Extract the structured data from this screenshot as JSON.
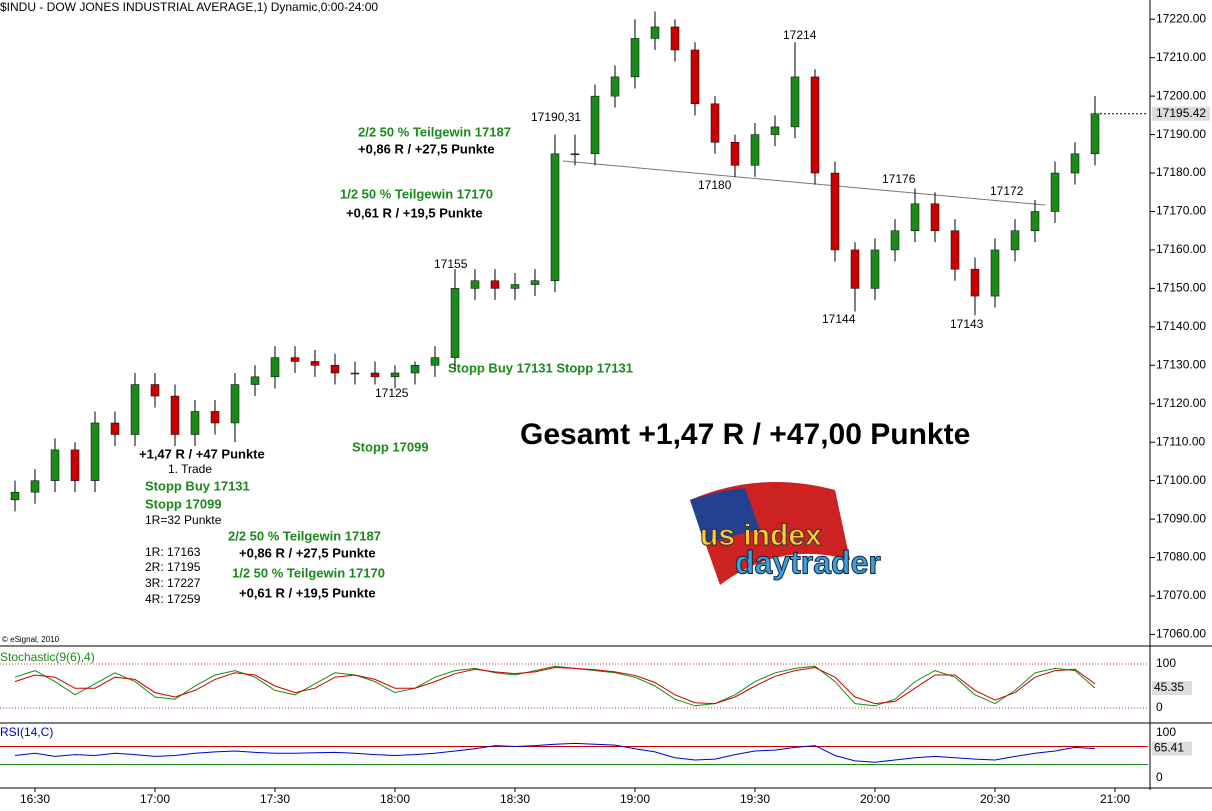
{
  "chart_data": {
    "type": "candlestick",
    "title": "$INDU - DOW JONES INDUSTRIAL AVERAGE,1) Dynamic,0:00-24:00",
    "credit": "© eSignal, 2010",
    "up_color": "#1a8a1a",
    "down_color": "#cc0000",
    "x": [
      "16:25",
      "16:30",
      "16:35",
      "16:40",
      "16:45",
      "16:50",
      "16:55",
      "17:00",
      "17:05",
      "17:10",
      "17:15",
      "17:20",
      "17:25",
      "17:30",
      "17:35",
      "17:40",
      "17:45",
      "17:50",
      "17:55",
      "18:00",
      "18:05",
      "18:10",
      "18:15",
      "18:20",
      "18:25",
      "18:30",
      "18:35",
      "18:40",
      "18:45",
      "18:50",
      "18:55",
      "19:00",
      "19:05",
      "19:10",
      "19:15",
      "19:20",
      "19:25",
      "19:30",
      "19:35",
      "19:40",
      "19:45",
      "19:50",
      "19:55",
      "20:00",
      "20:05",
      "20:10",
      "20:15",
      "20:20",
      "20:25",
      "20:30",
      "20:35",
      "20:40",
      "20:45",
      "20:50",
      "20:55"
    ],
    "open": [
      17095,
      17097,
      17100,
      17108,
      17100,
      17115,
      17112,
      17125,
      17122,
      17112,
      17118,
      17115,
      17125,
      17127,
      17132,
      17131,
      17130,
      17128,
      17128,
      17127,
      17128,
      17130,
      17132,
      17150,
      17152,
      17150,
      17151,
      17152,
      17185,
      17185,
      17200,
      17205,
      17215,
      17218,
      17212,
      17198,
      17188,
      17182,
      17190,
      17192,
      17205,
      17180,
      17160,
      17150,
      17160,
      17165,
      17172,
      17165,
      17155,
      17148,
      17160,
      17165,
      17170,
      17180,
      17185
    ],
    "high": [
      17100,
      17103,
      17111,
      17110,
      17118,
      17118,
      17128,
      17128,
      17125,
      17121,
      17121,
      17128,
      17130,
      17135,
      17135,
      17134,
      17133,
      17131,
      17131,
      17130,
      17131,
      17135,
      17155,
      17155,
      17155,
      17154,
      17155,
      17190,
      17190,
      17203,
      17208,
      17220,
      17222,
      17220,
      17214,
      17200,
      17190,
      17193,
      17195,
      17214,
      17207,
      17183,
      17162,
      17163,
      17168,
      17176,
      17175,
      17168,
      17158,
      17163,
      17168,
      17173,
      17183,
      17188,
      17200
    ],
    "low": [
      17092,
      17094,
      17097,
      17097,
      17097,
      17109,
      17109,
      17119,
      17109,
      17109,
      17112,
      17110,
      17122,
      17124,
      17128,
      17127,
      17125,
      17125,
      17125,
      17124,
      17125,
      17127,
      17129,
      17147,
      17147,
      17147,
      17148,
      17149,
      17182,
      17182,
      17197,
      17202,
      17212,
      17209,
      17195,
      17185,
      17179,
      17179,
      17187,
      17189,
      17177,
      17157,
      17144,
      17147,
      17157,
      17162,
      17162,
      17152,
      17143,
      17145,
      17157,
      17162,
      17167,
      17177,
      17182
    ],
    "close": [
      17097,
      17100,
      17108,
      17100,
      17115,
      17112,
      17125,
      17122,
      17112,
      17118,
      17115,
      17125,
      17127,
      17132,
      17131,
      17130,
      17128,
      17128,
      17127,
      17128,
      17130,
      17132,
      17150,
      17152,
      17150,
      17151,
      17152,
      17185,
      17185,
      17200,
      17205,
      17215,
      17218,
      17212,
      17198,
      17188,
      17182,
      17190,
      17192,
      17205,
      17180,
      17160,
      17150,
      17160,
      17165,
      17172,
      17165,
      17155,
      17148,
      17160,
      17165,
      17170,
      17180,
      17185,
      17195.42
    ],
    "last_price": 17195.42,
    "ylim": [
      17057,
      17225
    ],
    "yticks": [
      {
        "value": 17060,
        "label": "17060.00"
      },
      {
        "value": 17070,
        "label": "17070.00"
      },
      {
        "value": 17080,
        "label": "17080.00"
      },
      {
        "value": 17090,
        "label": "17090.00"
      },
      {
        "value": 17100,
        "label": "17100.00"
      },
      {
        "value": 17110,
        "label": "17110.00"
      },
      {
        "value": 17120,
        "label": "17120.00"
      },
      {
        "value": 17130,
        "label": "17130.00"
      },
      {
        "value": 17140,
        "label": "17140.00"
      },
      {
        "value": 17150,
        "label": "17150.00"
      },
      {
        "value": 17160,
        "label": "17160.00"
      },
      {
        "value": 17170,
        "label": "17170.00"
      },
      {
        "value": 17180,
        "label": "17180.00"
      },
      {
        "value": 17190,
        "label": "17190.00"
      },
      {
        "value": 17200,
        "label": "17200.00"
      },
      {
        "value": 17210,
        "label": "17210.00"
      },
      {
        "value": 17220,
        "label": "17220.00"
      }
    ],
    "xticks": [
      "16:30",
      "17:00",
      "17:30",
      "18:00",
      "18:30",
      "19:00",
      "19:30",
      "20:00",
      "20:30",
      "21:00"
    ],
    "stochastic": {
      "label": "Stochastic(9(6),4)",
      "ylim": [
        0,
        100
      ],
      "yticks": [
        100,
        0
      ],
      "last": 45.35,
      "series": [
        {
          "color": "#1a8a1a",
          "values": [
            70,
            85,
            60,
            30,
            55,
            80,
            60,
            25,
            20,
            50,
            75,
            85,
            70,
            40,
            30,
            55,
            80,
            75,
            60,
            35,
            45,
            70,
            85,
            90,
            80,
            75,
            85,
            95,
            90,
            85,
            80,
            70,
            50,
            20,
            5,
            10,
            30,
            60,
            80,
            90,
            95,
            60,
            10,
            5,
            20,
            60,
            85,
            70,
            30,
            10,
            40,
            80,
            90,
            85,
            45.35
          ]
        },
        {
          "color": "#cc0000",
          "values": [
            60,
            75,
            70,
            45,
            45,
            70,
            65,
            35,
            25,
            40,
            65,
            80,
            75,
            50,
            35,
            45,
            70,
            75,
            65,
            45,
            45,
            60,
            78,
            88,
            82,
            78,
            82,
            92,
            90,
            87,
            82,
            74,
            58,
            30,
            12,
            10,
            25,
            50,
            72,
            85,
            92,
            70,
            25,
            10,
            15,
            45,
            75,
            75,
            40,
            18,
            35,
            70,
            85,
            88,
            55
          ]
        }
      ]
    },
    "rsi": {
      "label": "RSI(14,C)",
      "ylim": [
        0,
        100
      ],
      "yticks": [
        100,
        0
      ],
      "last": 65.41,
      "levels": [
        {
          "value": 70,
          "color": "#cc0000"
        },
        {
          "value": 30,
          "color": "#1a8a1a"
        }
      ],
      "series": [
        {
          "color": "#0000cc",
          "values": [
            50,
            55,
            48,
            52,
            50,
            55,
            52,
            48,
            50,
            55,
            58,
            60,
            57,
            55,
            55,
            56,
            57,
            55,
            52,
            50,
            52,
            55,
            60,
            65,
            72,
            70,
            72,
            75,
            77,
            75,
            73,
            65,
            58,
            45,
            40,
            42,
            52,
            60,
            62,
            68,
            72,
            50,
            38,
            35,
            40,
            45,
            48,
            45,
            42,
            40,
            48,
            55,
            60,
            68,
            65.41
          ]
        }
      ]
    },
    "annotations": [
      "17214",
      "17190,31",
      "17180",
      "17176",
      "17172",
      "17155",
      "17144",
      "17143",
      "17125",
      "2/2 50 % Teilgewin 17187",
      "+0,86 R / +27,5 Punkte",
      "1/2 50 % Teilgewin 17170",
      "+0,61 R / +19,5 Punkte",
      "Stopp Buy 17131 Stopp 17131",
      "Stopp 17099",
      "+1,47 R / +47 Punkte",
      "1. Trade",
      "Stopp Buy 17131",
      "Stopp 17099",
      "1R=32 Punkte",
      "1R: 17163",
      "2R: 17195",
      "3R: 17227",
      "4R: 17259",
      "2/2 50 % Teilgewin 17187",
      "+0,86 R / +27,5 Punkte",
      "1/2 50 % Teilgewin 17170",
      "+0,61 R / +19,5 Punkte",
      "Gesamt +1,47 R / +47,00 Punkte"
    ]
  },
  "logo": {
    "line1": "us index",
    "line2": "daytrader"
  }
}
